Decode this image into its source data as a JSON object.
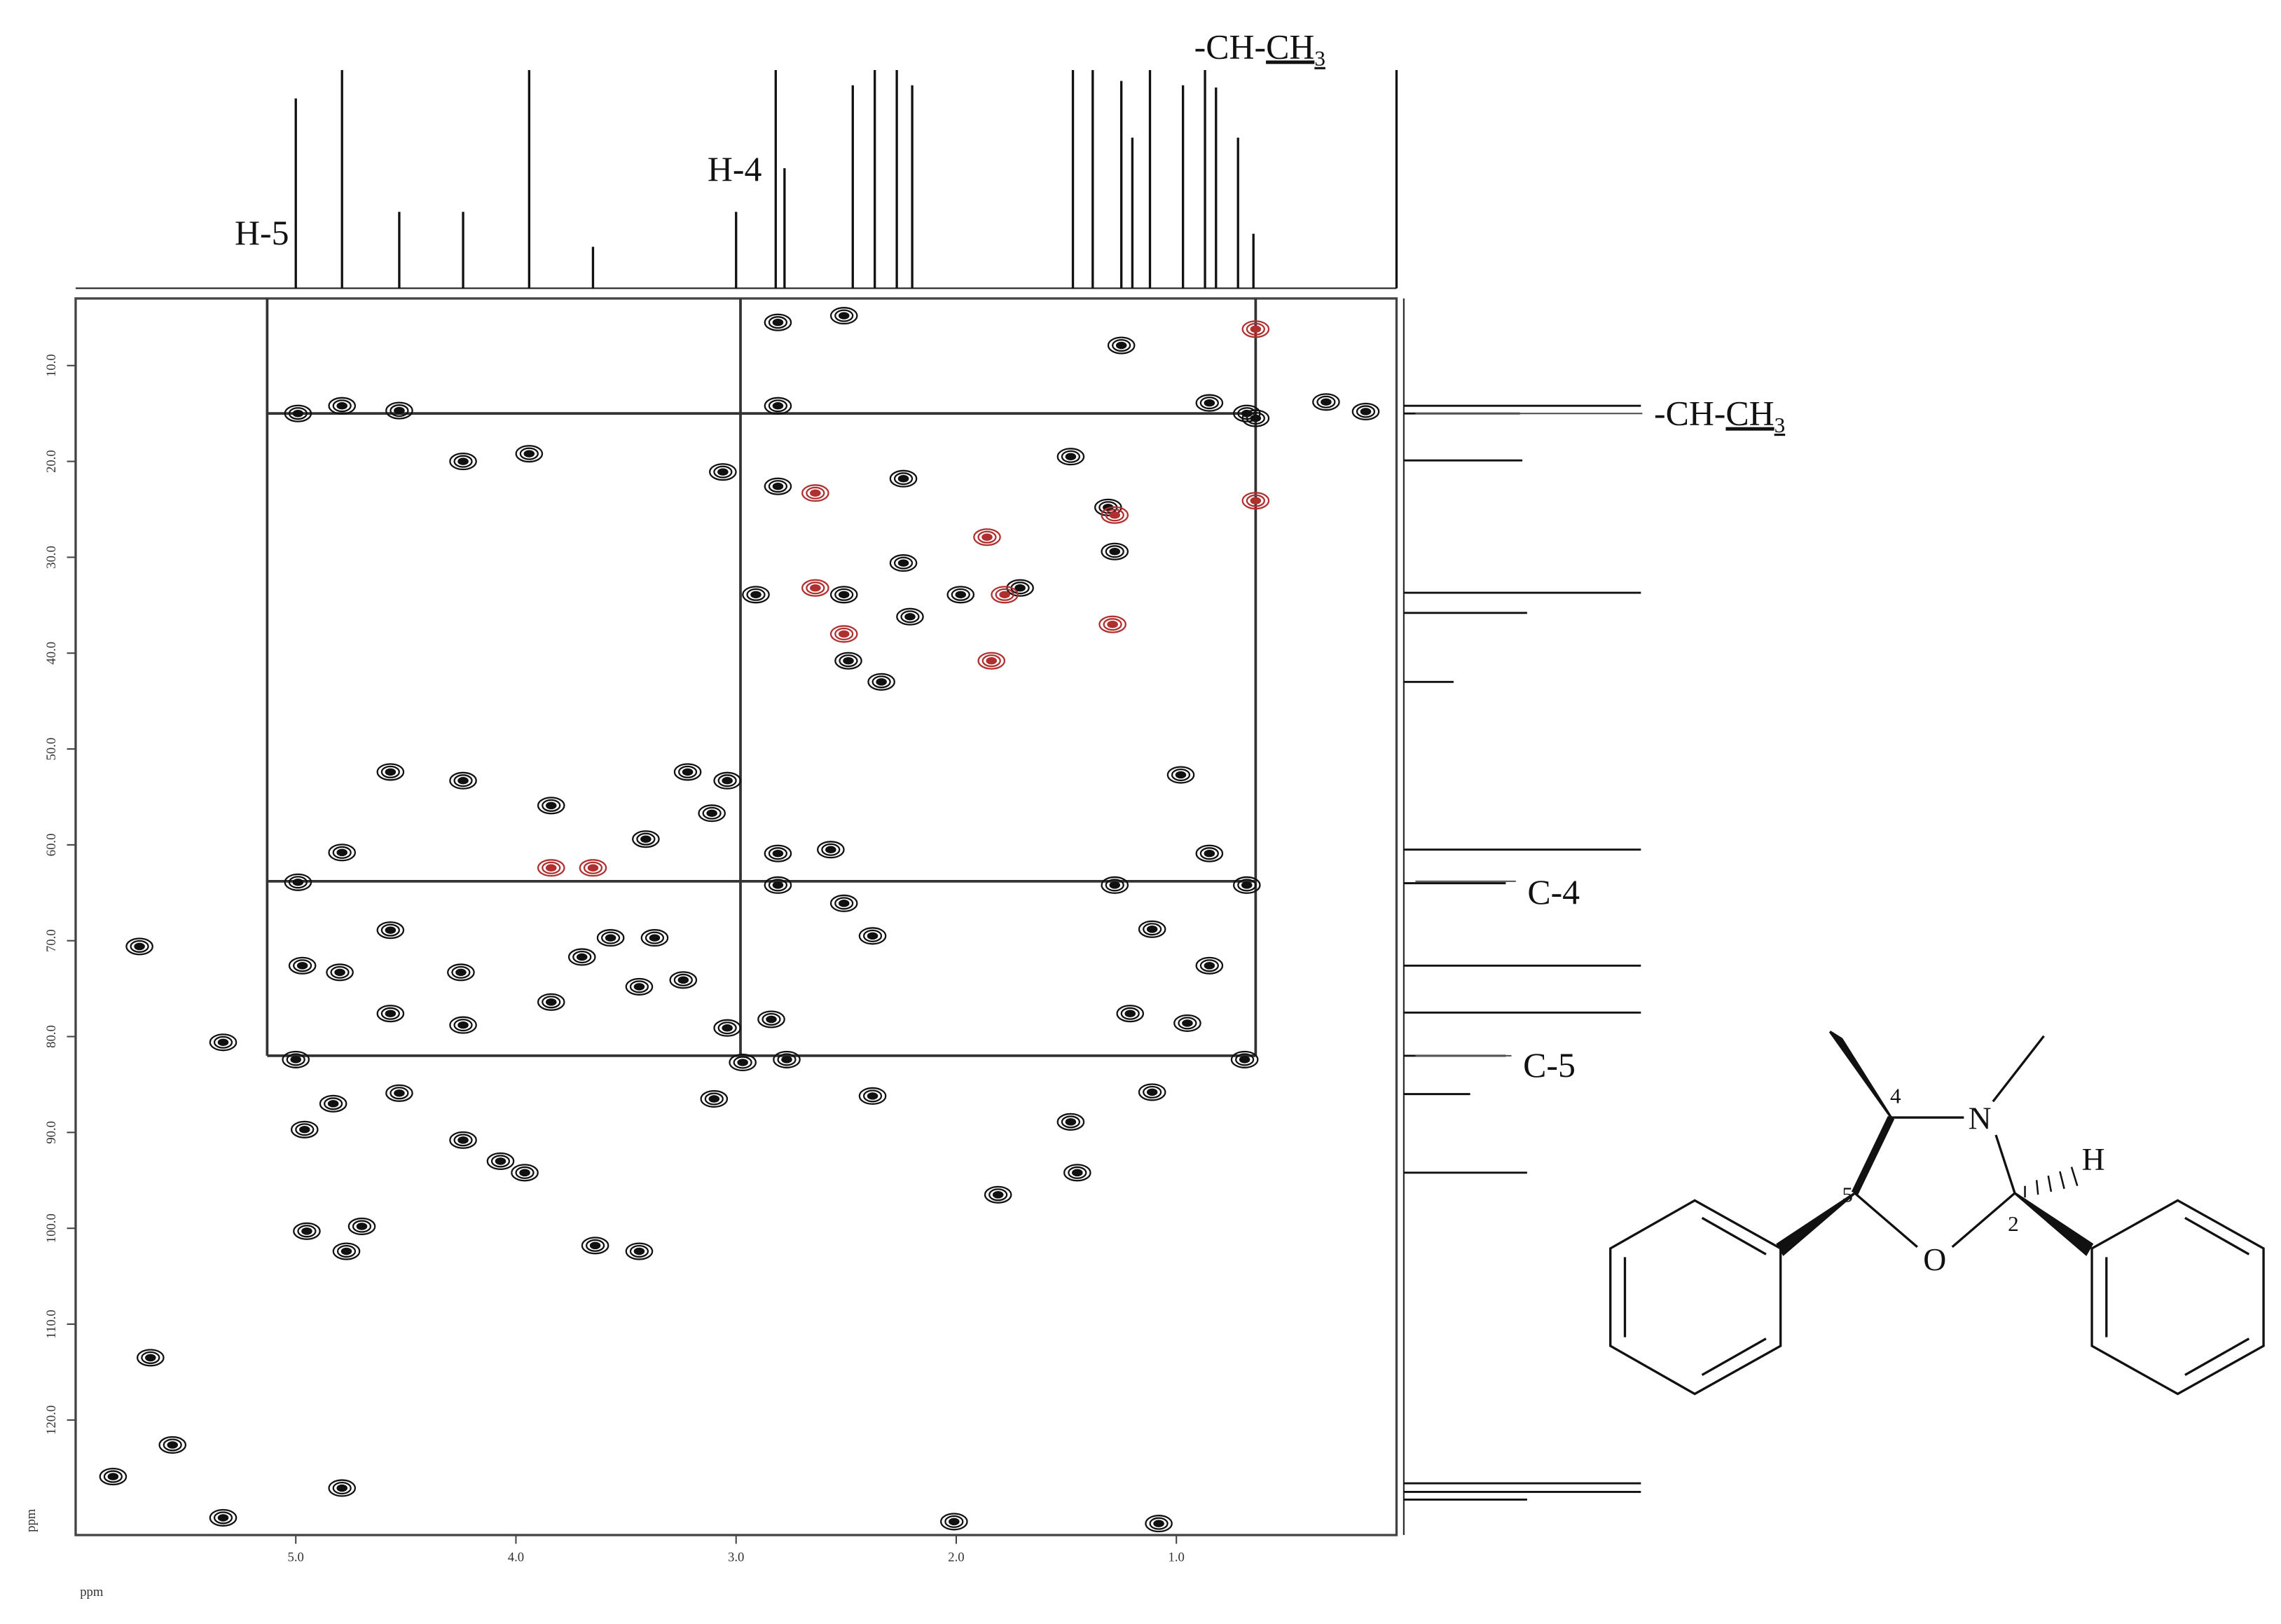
{
  "chart_data": {
    "type": "contour",
    "x_label": "ppm",
    "y_label": "ppm",
    "xlim": [
      6.0,
      0.0
    ],
    "ylim": [
      3.0,
      132.0
    ],
    "x_reversed": true,
    "y_reversed": true,
    "xticks": [
      {
        "value": 5,
        "label": "5.0"
      },
      {
        "value": 4,
        "label": "4.0"
      },
      {
        "value": 3,
        "label": "3.0"
      },
      {
        "value": 2,
        "label": "2.0"
      },
      {
        "value": 1,
        "label": "1.0"
      }
    ],
    "yticks": [
      {
        "value": 10,
        "label": "10.0"
      },
      {
        "value": 20,
        "label": "20.0"
      },
      {
        "value": 30,
        "label": "30.0"
      },
      {
        "value": 40,
        "label": "40.0"
      },
      {
        "value": 50,
        "label": "50.0"
      },
      {
        "value": 60,
        "label": "60.0"
      },
      {
        "value": 70,
        "label": "70.0"
      },
      {
        "value": 80,
        "label": "80.0"
      },
      {
        "value": 90,
        "label": "90.0"
      },
      {
        "value": 100,
        "label": "100.0"
      },
      {
        "value": 110,
        "label": "110.0"
      },
      {
        "value": 120,
        "label": "120.0"
      }
    ],
    "series": [
      {
        "color": "#111111",
        "x": [
          4.99,
          4.79,
          4.53,
          4.24,
          3.94,
          2.81,
          2.81,
          2.51,
          1.25,
          0.85,
          0.68,
          0.64,
          0.32,
          0.14,
          3.06,
          2.81,
          2.24,
          1.48,
          1.31,
          1.28,
          2.24,
          2.51,
          2.21,
          2.91,
          2.34,
          2.49,
          1.71,
          1.98,
          4.57,
          4.24,
          3.22,
          3.04,
          4.79,
          3.41,
          3.11,
          2.81,
          3.84,
          2.57,
          0.98,
          0.85,
          4.99,
          2.81,
          2.51,
          0.68,
          1.28,
          2.38,
          4.57,
          3.57,
          3.37,
          5.71,
          4.8,
          4.97,
          4.25,
          3.7,
          3.44,
          3.24,
          4.57,
          4.24,
          3.84,
          2.84,
          3.04,
          5.33,
          5.0,
          2.97,
          2.77,
          1.21,
          0.95,
          0.69,
          1.11,
          0.85,
          4.53,
          4.83,
          3.1,
          2.38,
          1.11,
          1.48,
          4.96,
          4.24,
          4.07,
          3.96,
          1.45,
          1.81,
          4.95,
          4.7,
          4.77,
          3.64,
          3.44,
          5.66,
          5.56,
          5.83,
          5.33,
          4.79,
          2.01,
          1.08
        ],
        "values": [
          15.0,
          14.2,
          14.7,
          20.0,
          19.2,
          14.2,
          5.5,
          4.8,
          7.9,
          13.9,
          15.0,
          15.5,
          13.8,
          14.8,
          21.1,
          22.6,
          21.8,
          19.5,
          24.8,
          29.4,
          30.6,
          33.9,
          36.2,
          33.9,
          43.0,
          40.8,
          33.2,
          33.9,
          52.4,
          53.3,
          52.4,
          53.3,
          60.8,
          59.4,
          56.7,
          60.9,
          55.9,
          60.5,
          52.7,
          60.9,
          63.9,
          64.2,
          66.1,
          64.2,
          64.2,
          69.5,
          68.9,
          69.7,
          69.7,
          70.6,
          73.3,
          72.6,
          73.3,
          71.7,
          74.8,
          74.1,
          77.6,
          78.8,
          76.4,
          78.2,
          79.1,
          80.6,
          82.4,
          82.7,
          82.4,
          77.6,
          78.6,
          82.4,
          68.8,
          72.6,
          85.9,
          87.0,
          86.5,
          86.2,
          85.8,
          88.9,
          89.7,
          90.8,
          93.0,
          94.2,
          94.2,
          96.5,
          100.3,
          99.8,
          102.4,
          101.8,
          102.4,
          113.5,
          122.6,
          125.9,
          130.2,
          127.1,
          130.6,
          130.8
        ]
      },
      {
        "color": "#b03030",
        "x": [
          3.84,
          3.65,
          2.64,
          2.64,
          1.86,
          1.78,
          1.84,
          1.29,
          1.28,
          0.64,
          0.64,
          2.51
        ],
        "values": [
          62.4,
          62.4,
          23.3,
          33.2,
          27.9,
          33.9,
          40.8,
          37.0,
          25.6,
          6.2,
          24.1,
          38.0
        ]
      }
    ],
    "top_projection": {
      "x": [
        5.0,
        4.79,
        4.53,
        4.24,
        3.94,
        3.65,
        3.0,
        2.82,
        2.78,
        2.47,
        2.37,
        2.27,
        2.2,
        1.47,
        1.38,
        1.25,
        1.2,
        1.12,
        0.97,
        0.87,
        0.82,
        0.72,
        0.65,
        0.0
      ],
      "values": [
        87,
        100,
        35,
        35,
        100,
        19,
        35,
        100,
        55,
        93,
        100,
        100,
        93,
        100,
        100,
        95,
        69,
        100,
        93,
        100,
        92,
        69,
        25,
        100
      ]
    },
    "right_projection": {
      "y": [
        14.2,
        15.0,
        19.9,
        33.7,
        35.8,
        43.0,
        60.5,
        64.0,
        72.6,
        77.5,
        82.0,
        86.0,
        94.2,
        126.6,
        127.5,
        128.3
      ],
      "values": [
        100,
        49,
        50,
        100,
        52,
        21,
        100,
        43,
        100,
        100,
        43,
        28,
        52,
        100,
        100,
        52
      ]
    },
    "guides": [
      {
        "axis": "x",
        "value": 5.13,
        "label": "H-5"
      },
      {
        "axis": "x",
        "value": 2.98,
        "label": "H-4"
      },
      {
        "axis": "x",
        "value": 0.64,
        "label": {
          "text": "-CH-",
          "underlined": "CH",
          "subscript": "3"
        }
      },
      {
        "axis": "y",
        "value": 15.0,
        "label": {
          "text": "-CH-",
          "underlined": "CH",
          "subscript": "3"
        }
      },
      {
        "axis": "y",
        "value": 63.8,
        "label": "C-4"
      },
      {
        "axis": "y",
        "value": 82.0,
        "label": "C-5"
      }
    ]
  },
  "molecule": {
    "atoms": [
      "4",
      "N",
      "H",
      "5",
      "O",
      "2"
    ]
  }
}
